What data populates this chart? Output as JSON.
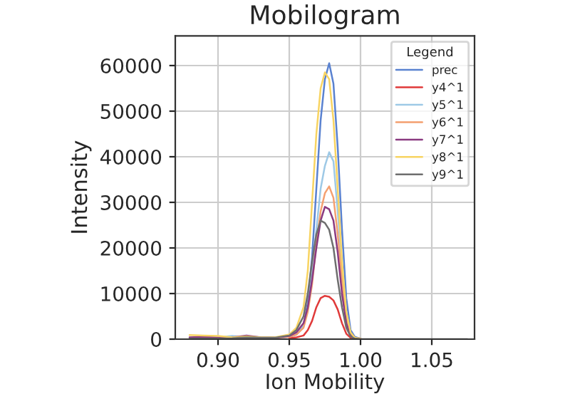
{
  "chart_data": {
    "type": "line",
    "title": "Mobilogram",
    "xlabel": "Ion Mobility",
    "ylabel": "Intensity",
    "legend_title": "Legend",
    "legend": "top right",
    "grid": true,
    "x": [
      0.88,
      0.89,
      0.9,
      0.91,
      0.92,
      0.93,
      0.94,
      0.95,
      0.955,
      0.96,
      0.963,
      0.966,
      0.969,
      0.972,
      0.975,
      0.978,
      0.981,
      0.984,
      0.987,
      0.99,
      0.993,
      0.996,
      1.0,
      1.01,
      1.02,
      1.03,
      1.04,
      1.05,
      1.06,
      1.07,
      1.075
    ],
    "xlim": [
      0.87,
      1.08
    ],
    "xticks": [
      {
        "value": 0.9,
        "label": "0.90"
      },
      {
        "value": 0.95,
        "label": "0.95"
      },
      {
        "value": 1.0,
        "label": "1.00"
      },
      {
        "value": 1.05,
        "label": "1.05"
      }
    ],
    "ylim": [
      0,
      66500
    ],
    "yticks": [
      0,
      10000,
      20000,
      30000,
      40000,
      50000,
      60000
    ],
    "series": [
      {
        "name": "prec",
        "color": "#5a82d0",
        "values": [
          null,
          null,
          300,
          300,
          400,
          300,
          300,
          500,
          1000,
          3000,
          8000,
          18000,
          33000,
          48000,
          57000,
          60500,
          56000,
          42000,
          24000,
          9000,
          2000,
          500,
          100,
          null,
          null,
          null,
          null,
          null,
          null,
          null,
          null
        ]
      },
      {
        "name": "y4^1",
        "color": "#e03a3a",
        "values": [
          null,
          null,
          null,
          null,
          null,
          null,
          null,
          200,
          400,
          800,
          2000,
          4000,
          7000,
          9000,
          9500,
          9300,
          8500,
          6500,
          3500,
          1200,
          300,
          100,
          null,
          null,
          null,
          null,
          null,
          null,
          null,
          null,
          null
        ]
      },
      {
        "name": "y5^1",
        "color": "#9ec9e6",
        "values": [
          300,
          500,
          400,
          700,
          300,
          300,
          300,
          600,
          1200,
          3000,
          7000,
          14000,
          24000,
          33000,
          38000,
          41000,
          39000,
          28000,
          16000,
          6000,
          1200,
          300,
          100,
          null,
          null,
          null,
          null,
          null,
          null,
          null,
          null
        ]
      },
      {
        "name": "y6^1",
        "color": "#f4a070",
        "values": [
          200,
          300,
          300,
          300,
          500,
          300,
          300,
          500,
          1000,
          2500,
          6000,
          12000,
          21000,
          28000,
          32000,
          33500,
          31000,
          23000,
          13000,
          5000,
          1000,
          200,
          100,
          null,
          null,
          null,
          null,
          null,
          null,
          null,
          null
        ]
      },
      {
        "name": "y7^1",
        "color": "#8a3a80",
        "values": [
          400,
          500,
          300,
          400,
          800,
          400,
          300,
          700,
          1500,
          3500,
          7000,
          13000,
          20000,
          26000,
          29000,
          28500,
          26000,
          19000,
          10000,
          3500,
          800,
          200,
          100,
          null,
          null,
          null,
          null,
          null,
          null,
          null,
          null
        ]
      },
      {
        "name": "y8^1",
        "color": "#f8d462",
        "values": [
          900,
          800,
          700,
          400,
          600,
          400,
          400,
          1000,
          2500,
          7000,
          15000,
          30000,
          45000,
          55000,
          58500,
          57000,
          48000,
          33000,
          17000,
          6000,
          1500,
          300,
          100,
          null,
          null,
          null,
          null,
          null,
          null,
          null,
          null
        ]
      },
      {
        "name": "y9^1",
        "color": "#6e6e6e",
        "values": [
          100,
          100,
          100,
          200,
          400,
          300,
          300,
          800,
          2000,
          5000,
          10000,
          17000,
          23000,
          26000,
          25500,
          24000,
          20000,
          13000,
          7000,
          2500,
          600,
          100,
          0,
          0,
          0,
          0,
          0,
          0,
          0,
          0,
          0
        ]
      }
    ]
  }
}
